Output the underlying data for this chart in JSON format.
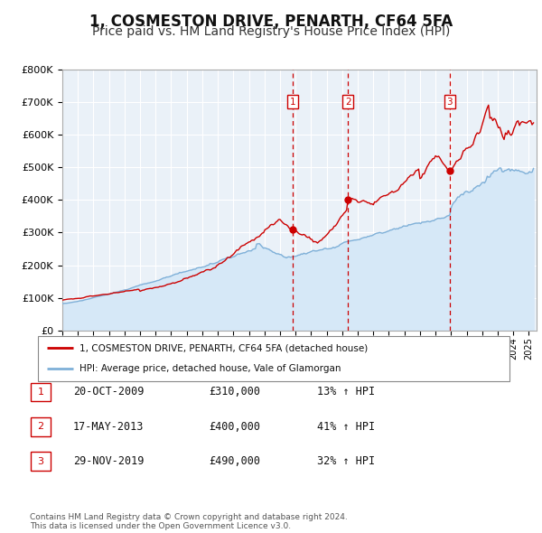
{
  "title": "1, COSMESTON DRIVE, PENARTH, CF64 5FA",
  "subtitle": "Price paid vs. HM Land Registry's House Price Index (HPI)",
  "hpi_label": "HPI: Average price, detached house, Vale of Glamorgan",
  "price_label": "1, COSMESTON DRIVE, PENARTH, CF64 5FA (detached house)",
  "ylim": [
    0,
    800000
  ],
  "yticks": [
    0,
    100000,
    200000,
    300000,
    400000,
    500000,
    600000,
    700000,
    800000
  ],
  "ytick_labels": [
    "£0",
    "£100K",
    "£200K",
    "£300K",
    "£400K",
    "£500K",
    "£600K",
    "£700K",
    "£800K"
  ],
  "xlim_start": 1995.0,
  "xlim_end": 2025.5,
  "transactions": [
    {
      "num": 1,
      "date": "20-OCT-2009",
      "year": 2009.8,
      "price": 310000,
      "pct": "13%",
      "dir": "↑"
    },
    {
      "num": 2,
      "date": "17-MAY-2013",
      "year": 2013.37,
      "price": 400000,
      "pct": "41%",
      "dir": "↑"
    },
    {
      "num": 3,
      "date": "29-NOV-2019",
      "year": 2019.9,
      "price": 490000,
      "pct": "32%",
      "dir": "↑"
    }
  ],
  "price_color": "#cc0000",
  "hpi_color": "#7fb0d8",
  "hpi_fill_color": "#d6e8f7",
  "bg_color": "#eaf1f8",
  "grid_color": "#ffffff",
  "vline_color": "#cc0000",
  "transaction_box_color": "#cc0000",
  "footer": "Contains HM Land Registry data © Crown copyright and database right 2024.\nThis data is licensed under the Open Government Licence v3.0.",
  "title_fontsize": 12,
  "subtitle_fontsize": 10
}
